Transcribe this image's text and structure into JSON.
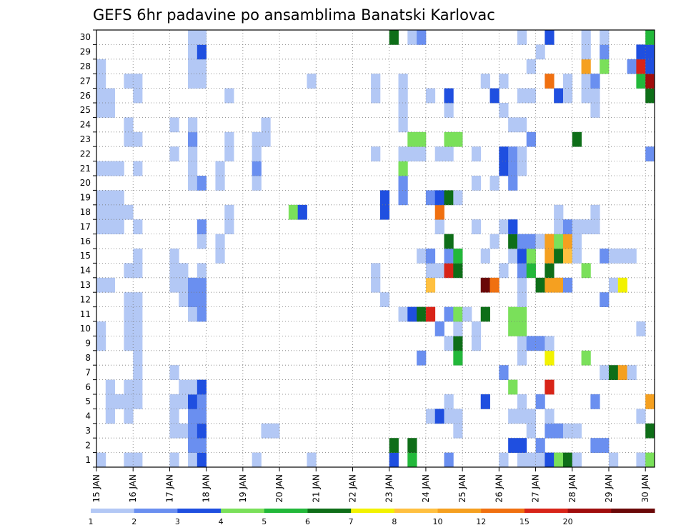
{
  "chart_data": {
    "type": "heatmap",
    "title": "GEFS 6hr padavine po ansamblima Banatski Karlovac",
    "x_tick_labels": [
      "15 JAN",
      "16 JAN",
      "17 JAN",
      "18 JAN",
      "19 JAN",
      "20 JAN",
      "21 JAN",
      "22 JAN",
      "23 JAN",
      "24 JAN",
      "25 JAN",
      "26 JAN",
      "27 JAN",
      "28 JAN",
      "29 JAN",
      "30 JAN"
    ],
    "y_tick_labels": [
      "1",
      "2",
      "3",
      "4",
      "5",
      "6",
      "7",
      "8",
      "9",
      "10",
      "11",
      "12",
      "13",
      "14",
      "15",
      "16",
      "17",
      "18",
      "19",
      "20",
      "21",
      "22",
      "23",
      "24",
      "25",
      "26",
      "27",
      "28",
      "29",
      "30"
    ],
    "steps_per_day": 4,
    "ylim": [
      0,
      30
    ],
    "grid": true,
    "colorbar": {
      "labels": [
        "1",
        "2",
        "3",
        "4",
        "5",
        "6",
        "7",
        "8",
        "10",
        "12",
        "15",
        "20"
      ],
      "colors": [
        "#b3c8f5",
        "#6a8ff0",
        "#1f4fe0",
        "#7ae05a",
        "#22b83a",
        "#0e6e18",
        "#f2f200",
        "#ffc040",
        "#f5a020",
        "#f07010",
        "#d82418",
        "#a00d0d",
        "#6a0808"
      ]
    },
    "cells": [
      [
        0,
        0,
        1
      ],
      [
        0,
        8,
        1
      ],
      [
        0,
        9,
        1
      ],
      [
        0,
        12,
        1
      ],
      [
        0,
        16,
        1
      ],
      [
        0,
        17,
        1
      ],
      [
        0,
        18,
        1
      ],
      [
        0,
        20,
        1
      ],
      [
        0,
        24,
        1
      ],
      [
        0,
        25,
        1
      ],
      [
        0,
        26,
        1
      ],
      [
        0,
        27,
        1
      ],
      [
        1,
        3,
        1
      ],
      [
        1,
        4,
        1
      ],
      [
        1,
        5,
        1
      ],
      [
        1,
        12,
        1
      ],
      [
        1,
        16,
        1
      ],
      [
        1,
        17,
        1
      ],
      [
        1,
        18,
        1
      ],
      [
        1,
        20,
        1
      ],
      [
        1,
        24,
        1
      ],
      [
        1,
        25,
        1
      ],
      [
        2,
        4,
        1
      ],
      [
        2,
        16,
        1
      ],
      [
        2,
        17,
        1
      ],
      [
        2,
        18,
        1
      ],
      [
        2,
        20,
        1
      ],
      [
        3,
        0,
        1
      ],
      [
        3,
        3,
        1
      ],
      [
        3,
        4,
        1
      ],
      [
        3,
        5,
        1
      ],
      [
        3,
        8,
        1
      ],
      [
        3,
        9,
        1
      ],
      [
        3,
        10,
        1
      ],
      [
        3,
        11,
        1
      ],
      [
        3,
        13,
        1
      ],
      [
        3,
        17,
        1
      ],
      [
        3,
        22,
        1
      ],
      [
        3,
        23,
        1
      ],
      [
        3,
        26,
        1
      ],
      [
        4,
        0,
        1
      ],
      [
        4,
        4,
        1
      ],
      [
        4,
        5,
        1
      ],
      [
        4,
        6,
        1
      ],
      [
        4,
        7,
        1
      ],
      [
        4,
        8,
        1
      ],
      [
        4,
        9,
        1
      ],
      [
        4,
        10,
        1
      ],
      [
        4,
        11,
        1
      ],
      [
        4,
        13,
        1
      ],
      [
        4,
        14,
        1
      ],
      [
        4,
        16,
        1
      ],
      [
        4,
        20,
        1
      ],
      [
        4,
        22,
        1
      ],
      [
        4,
        25,
        1
      ],
      [
        4,
        26,
        1
      ],
      [
        8,
        0,
        1
      ],
      [
        8,
        2,
        1
      ],
      [
        8,
        3,
        1
      ],
      [
        8,
        4,
        1
      ],
      [
        8,
        6,
        1
      ],
      [
        8,
        12,
        1
      ],
      [
        8,
        13,
        1
      ],
      [
        8,
        14,
        1
      ],
      [
        8,
        21,
        1
      ],
      [
        8,
        23,
        1
      ],
      [
        9,
        2,
        1
      ],
      [
        9,
        4,
        1
      ],
      [
        9,
        5,
        1
      ],
      [
        9,
        11,
        1
      ],
      [
        9,
        12,
        1
      ],
      [
        9,
        13,
        1
      ],
      [
        10,
        0,
        1
      ],
      [
        10,
        1,
        2
      ],
      [
        10,
        2,
        2
      ],
      [
        10,
        3,
        2
      ],
      [
        10,
        4,
        3
      ],
      [
        10,
        5,
        1
      ],
      [
        10,
        10,
        1
      ],
      [
        10,
        11,
        2
      ],
      [
        10,
        12,
        2
      ],
      [
        10,
        19,
        1
      ],
      [
        10,
        20,
        1
      ],
      [
        10,
        21,
        1
      ],
      [
        10,
        22,
        2
      ],
      [
        10,
        23,
        1
      ],
      [
        10,
        26,
        1
      ],
      [
        10,
        27,
        1
      ],
      [
        10,
        28,
        1
      ],
      [
        10,
        29,
        1
      ],
      [
        11,
        0,
        3
      ],
      [
        11,
        1,
        2
      ],
      [
        11,
        2,
        3
      ],
      [
        11,
        3,
        2
      ],
      [
        11,
        4,
        2
      ],
      [
        11,
        5,
        3
      ],
      [
        11,
        10,
        2
      ],
      [
        11,
        11,
        2
      ],
      [
        11,
        12,
        2
      ],
      [
        11,
        13,
        1
      ],
      [
        11,
        15,
        1
      ],
      [
        11,
        16,
        2
      ],
      [
        11,
        19,
        2
      ],
      [
        11,
        26,
        1
      ],
      [
        11,
        27,
        1
      ],
      [
        11,
        28,
        3
      ],
      [
        11,
        29,
        1
      ],
      [
        13,
        14,
        1
      ],
      [
        13,
        15,
        1
      ],
      [
        13,
        19,
        1
      ],
      [
        13,
        20,
        1
      ],
      [
        14,
        16,
        1
      ],
      [
        14,
        17,
        1
      ],
      [
        14,
        21,
        1
      ],
      [
        14,
        22,
        1
      ],
      [
        14,
        25,
        1
      ],
      [
        17,
        0,
        1
      ],
      [
        17,
        19,
        1
      ],
      [
        17,
        20,
        2
      ],
      [
        17,
        21,
        1
      ],
      [
        17,
        22,
        1
      ],
      [
        18,
        2,
        1
      ],
      [
        18,
        22,
        1
      ],
      [
        18,
        23,
        1
      ],
      [
        19,
        2,
        1
      ],
      [
        21,
        17,
        4
      ],
      [
        22,
        17,
        3
      ],
      [
        23,
        0,
        1
      ],
      [
        23,
        26,
        1
      ],
      [
        30,
        12,
        1
      ],
      [
        30,
        13,
        1
      ],
      [
        30,
        21,
        1
      ],
      [
        30,
        25,
        1
      ],
      [
        30,
        26,
        1
      ],
      [
        31,
        11,
        1
      ],
      [
        31,
        17,
        3
      ],
      [
        31,
        18,
        3
      ],
      [
        32,
        0,
        3
      ],
      [
        32,
        1,
        6
      ],
      [
        32,
        29,
        6
      ],
      [
        33,
        10,
        1
      ],
      [
        33,
        18,
        2
      ],
      [
        33,
        19,
        2
      ],
      [
        33,
        20,
        4
      ],
      [
        33,
        21,
        1
      ],
      [
        33,
        23,
        1
      ],
      [
        33,
        24,
        1
      ],
      [
        33,
        25,
        1
      ],
      [
        33,
        26,
        1
      ],
      [
        34,
        0,
        5
      ],
      [
        34,
        1,
        6
      ],
      [
        34,
        10,
        3
      ],
      [
        34,
        21,
        1
      ],
      [
        34,
        22,
        4
      ],
      [
        34,
        29,
        1
      ],
      [
        35,
        7,
        2
      ],
      [
        35,
        10,
        6
      ],
      [
        35,
        14,
        1
      ],
      [
        35,
        21,
        1
      ],
      [
        35,
        22,
        4
      ],
      [
        35,
        29,
        2
      ],
      [
        36,
        3,
        1
      ],
      [
        36,
        10,
        11
      ],
      [
        36,
        12,
        8
      ],
      [
        36,
        13,
        1
      ],
      [
        36,
        14,
        2
      ],
      [
        36,
        18,
        2
      ],
      [
        36,
        25,
        1
      ],
      [
        37,
        3,
        3
      ],
      [
        37,
        9,
        2
      ],
      [
        37,
        13,
        1
      ],
      [
        37,
        16,
        1
      ],
      [
        37,
        17,
        10
      ],
      [
        37,
        18,
        3
      ],
      [
        37,
        21,
        1
      ],
      [
        38,
        0,
        2
      ],
      [
        38,
        3,
        1
      ],
      [
        38,
        4,
        1
      ],
      [
        38,
        8,
        1
      ],
      [
        38,
        10,
        2
      ],
      [
        38,
        13,
        11
      ],
      [
        38,
        14,
        2
      ],
      [
        38,
        15,
        6
      ],
      [
        38,
        18,
        6
      ],
      [
        38,
        21,
        1
      ],
      [
        38,
        22,
        4
      ],
      [
        38,
        24,
        1
      ],
      [
        38,
        25,
        3
      ],
      [
        39,
        2,
        1
      ],
      [
        39,
        3,
        1
      ],
      [
        39,
        7,
        5
      ],
      [
        39,
        8,
        6
      ],
      [
        39,
        9,
        1
      ],
      [
        39,
        10,
        4
      ],
      [
        39,
        13,
        6
      ],
      [
        39,
        14,
        5
      ],
      [
        39,
        18,
        1
      ],
      [
        39,
        22,
        4
      ],
      [
        40,
        10,
        1
      ],
      [
        41,
        8,
        1
      ],
      [
        41,
        9,
        1
      ],
      [
        41,
        16,
        1
      ],
      [
        41,
        19,
        1
      ],
      [
        41,
        21,
        1
      ],
      [
        42,
        4,
        3
      ],
      [
        42,
        10,
        6
      ],
      [
        42,
        12,
        13
      ],
      [
        42,
        14,
        1
      ],
      [
        42,
        26,
        1
      ],
      [
        43,
        12,
        10
      ],
      [
        43,
        15,
        1
      ],
      [
        43,
        19,
        1
      ],
      [
        43,
        25,
        3
      ],
      [
        44,
        0,
        1
      ],
      [
        44,
        6,
        2
      ],
      [
        44,
        13,
        1
      ],
      [
        44,
        16,
        1
      ],
      [
        44,
        20,
        3
      ],
      [
        44,
        21,
        3
      ],
      [
        44,
        24,
        1
      ],
      [
        44,
        26,
        1
      ],
      [
        45,
        1,
        3
      ],
      [
        45,
        3,
        1
      ],
      [
        45,
        5,
        4
      ],
      [
        45,
        9,
        4
      ],
      [
        45,
        10,
        4
      ],
      [
        45,
        14,
        1
      ],
      [
        45,
        15,
        6
      ],
      [
        45,
        16,
        3
      ],
      [
        45,
        19,
        2
      ],
      [
        45,
        20,
        2
      ],
      [
        45,
        21,
        2
      ],
      [
        45,
        23,
        1
      ],
      [
        46,
        0,
        1
      ],
      [
        46,
        1,
        3
      ],
      [
        46,
        3,
        1
      ],
      [
        46,
        4,
        1
      ],
      [
        46,
        7,
        1
      ],
      [
        46,
        8,
        1
      ],
      [
        46,
        9,
        4
      ],
      [
        46,
        10,
        4
      ],
      [
        46,
        11,
        1
      ],
      [
        46,
        12,
        1
      ],
      [
        46,
        13,
        2
      ],
      [
        46,
        14,
        3
      ],
      [
        46,
        15,
        2
      ],
      [
        46,
        20,
        1
      ],
      [
        46,
        21,
        1
      ],
      [
        46,
        23,
        1
      ],
      [
        46,
        25,
        1
      ],
      [
        46,
        29,
        1
      ],
      [
        47,
        0,
        1
      ],
      [
        47,
        2,
        1
      ],
      [
        47,
        3,
        1
      ],
      [
        47,
        8,
        2
      ],
      [
        47,
        13,
        5
      ],
      [
        47,
        14,
        4
      ],
      [
        47,
        15,
        2
      ],
      [
        47,
        22,
        2
      ],
      [
        47,
        25,
        1
      ],
      [
        47,
        27,
        1
      ],
      [
        48,
        0,
        1
      ],
      [
        48,
        1,
        2
      ],
      [
        48,
        4,
        2
      ],
      [
        48,
        8,
        2
      ],
      [
        48,
        12,
        6
      ],
      [
        48,
        15,
        1
      ],
      [
        48,
        28,
        1
      ],
      [
        49,
        0,
        3
      ],
      [
        49,
        2,
        2
      ],
      [
        49,
        3,
        1
      ],
      [
        49,
        5,
        11
      ],
      [
        49,
        7,
        7
      ],
      [
        49,
        8,
        1
      ],
      [
        49,
        12,
        9
      ],
      [
        49,
        13,
        6
      ],
      [
        49,
        14,
        9
      ],
      [
        49,
        15,
        9
      ],
      [
        49,
        26,
        10
      ],
      [
        49,
        29,
        3
      ],
      [
        50,
        0,
        4
      ],
      [
        50,
        2,
        2
      ],
      [
        50,
        12,
        9
      ],
      [
        50,
        14,
        6
      ],
      [
        50,
        15,
        4
      ],
      [
        50,
        16,
        1
      ],
      [
        50,
        17,
        1
      ],
      [
        50,
        25,
        3
      ],
      [
        51,
        0,
        6
      ],
      [
        51,
        2,
        1
      ],
      [
        51,
        12,
        2
      ],
      [
        51,
        14,
        8
      ],
      [
        51,
        15,
        9
      ],
      [
        51,
        16,
        2
      ],
      [
        51,
        25,
        1
      ],
      [
        51,
        26,
        1
      ],
      [
        52,
        0,
        1
      ],
      [
        52,
        2,
        1
      ],
      [
        52,
        14,
        1
      ],
      [
        52,
        15,
        1
      ],
      [
        52,
        16,
        1
      ],
      [
        52,
        22,
        6
      ],
      [
        53,
        7,
        4
      ],
      [
        53,
        13,
        4
      ],
      [
        53,
        16,
        1
      ],
      [
        53,
        25,
        1
      ],
      [
        53,
        26,
        1
      ],
      [
        53,
        27,
        9
      ],
      [
        53,
        28,
        1
      ],
      [
        53,
        29,
        1
      ],
      [
        54,
        1,
        2
      ],
      [
        54,
        4,
        2
      ],
      [
        54,
        16,
        1
      ],
      [
        54,
        17,
        1
      ],
      [
        54,
        24,
        1
      ],
      [
        54,
        25,
        1
      ],
      [
        54,
        26,
        2
      ],
      [
        55,
        1,
        2
      ],
      [
        55,
        6,
        1
      ],
      [
        55,
        11,
        2
      ],
      [
        55,
        14,
        2
      ],
      [
        55,
        27,
        4
      ],
      [
        55,
        28,
        2
      ],
      [
        55,
        29,
        1
      ],
      [
        56,
        0,
        1
      ],
      [
        56,
        6,
        6
      ],
      [
        56,
        12,
        1
      ],
      [
        56,
        14,
        1
      ],
      [
        57,
        6,
        9
      ],
      [
        57,
        12,
        7
      ],
      [
        57,
        14,
        1
      ],
      [
        58,
        6,
        1
      ],
      [
        58,
        14,
        1
      ],
      [
        58,
        27,
        2
      ],
      [
        59,
        0,
        1
      ],
      [
        59,
        3,
        1
      ],
      [
        59,
        9,
        1
      ],
      [
        59,
        26,
        5
      ],
      [
        59,
        27,
        11
      ],
      [
        59,
        28,
        3
      ],
      [
        60,
        0,
        4
      ],
      [
        60,
        2,
        6
      ],
      [
        60,
        4,
        9
      ],
      [
        60,
        21,
        2
      ],
      [
        60,
        25,
        6
      ],
      [
        60,
        26,
        12
      ],
      [
        60,
        27,
        3
      ],
      [
        60,
        28,
        3
      ],
      [
        60,
        29,
        5
      ]
    ]
  }
}
